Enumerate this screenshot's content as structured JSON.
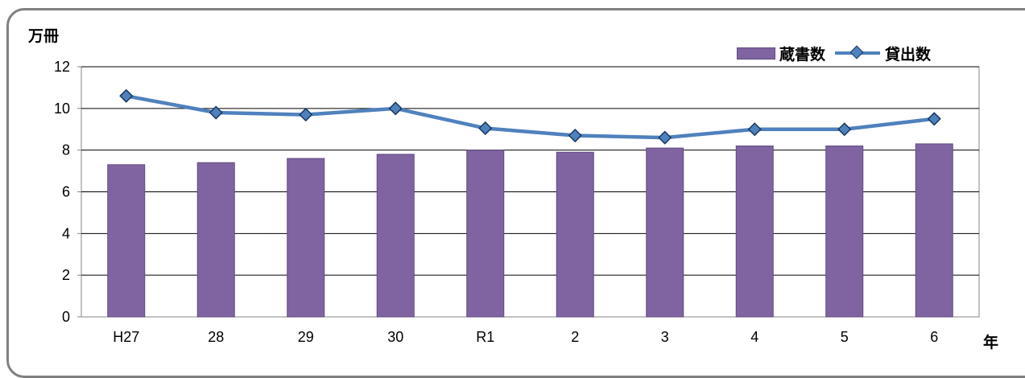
{
  "chart_data": {
    "type": "bar",
    "y_unit": "万冊",
    "x_unit": "年",
    "categories": [
      "H27",
      "28",
      "29",
      "30",
      "R1",
      "2",
      "3",
      "4",
      "5",
      "6"
    ],
    "series": [
      {
        "name": "蔵書数",
        "type": "bar",
        "color": "#8064a2",
        "values": [
          7.3,
          7.4,
          7.6,
          7.8,
          8.0,
          7.9,
          8.1,
          8.2,
          8.2,
          8.3
        ]
      },
      {
        "name": "貸出数",
        "type": "line",
        "marker": "diamond",
        "color": "#4f81bd",
        "values": [
          10.6,
          9.8,
          9.7,
          10.0,
          9.05,
          8.7,
          8.6,
          9.0,
          9.0,
          9.5
        ]
      }
    ],
    "ylim": [
      0,
      12
    ],
    "yticks": [
      "0",
      "2",
      "4",
      "6",
      "8",
      "10",
      "12"
    ],
    "grid": "horizontal",
    "legend_position": "top-right"
  }
}
